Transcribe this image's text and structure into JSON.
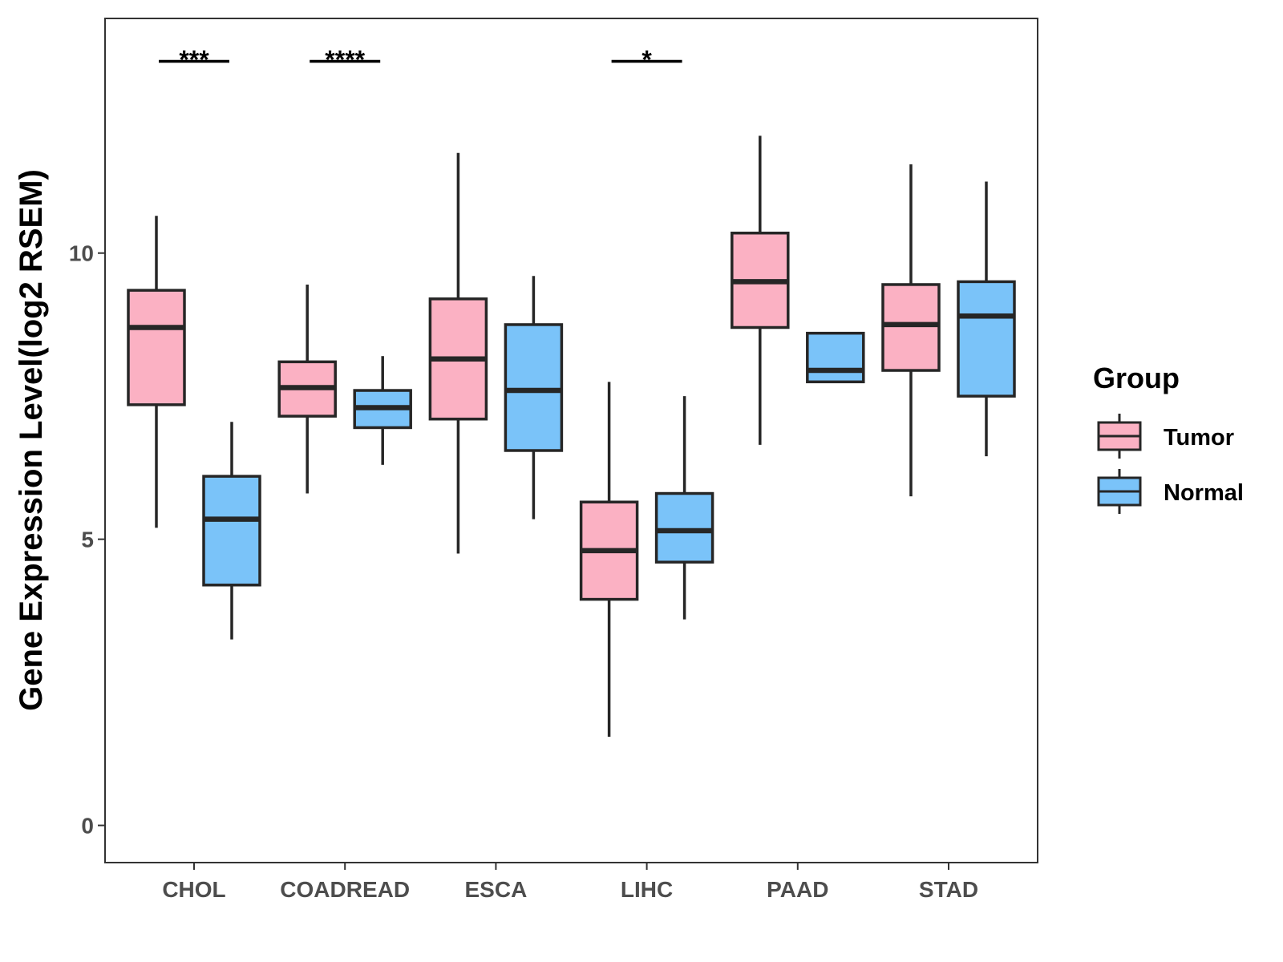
{
  "chart_data": {
    "type": "boxplot",
    "title": "",
    "xlabel": "",
    "ylabel": "Gene Expression Level(log2 RSEM)",
    "ylim": [
      -0.65,
      14.1
    ],
    "yticks": [
      0,
      5,
      10
    ],
    "categories": [
      "CHOL",
      "COADREAD",
      "ESCA",
      "LIHC",
      "PAAD",
      "STAD"
    ],
    "legend": {
      "title": "Group",
      "position": "right",
      "entries": [
        {
          "name": "Tumor",
          "color": "#fbb1c3"
        },
        {
          "name": "Normal",
          "color": "#7ac3f9"
        }
      ]
    },
    "series": [
      {
        "name": "Tumor",
        "color": "#fbb1c3",
        "boxes": [
          {
            "category": "CHOL",
            "min": 5.2,
            "q1": 7.35,
            "median": 8.7,
            "q3": 9.35,
            "max": 10.65
          },
          {
            "category": "COADREAD",
            "min": 5.8,
            "q1": 7.15,
            "median": 7.65,
            "q3": 8.1,
            "max": 9.45
          },
          {
            "category": "ESCA",
            "min": 4.75,
            "q1": 7.1,
            "median": 8.15,
            "q3": 9.2,
            "max": 11.75
          },
          {
            "category": "LIHC",
            "min": 1.55,
            "q1": 3.95,
            "median": 4.8,
            "q3": 5.65,
            "max": 7.75
          },
          {
            "category": "PAAD",
            "min": 6.65,
            "q1": 8.7,
            "median": 9.5,
            "q3": 10.35,
            "max": 12.05
          },
          {
            "category": "STAD",
            "min": 5.75,
            "q1": 7.95,
            "median": 8.75,
            "q3": 9.45,
            "max": 11.55
          }
        ]
      },
      {
        "name": "Normal",
        "color": "#7ac3f9",
        "boxes": [
          {
            "category": "CHOL",
            "min": 3.25,
            "q1": 4.2,
            "median": 5.35,
            "q3": 6.1,
            "max": 7.05
          },
          {
            "category": "COADREAD",
            "min": 6.3,
            "q1": 6.95,
            "median": 7.3,
            "q3": 7.6,
            "max": 8.2
          },
          {
            "category": "ESCA",
            "min": 5.35,
            "q1": 6.55,
            "median": 7.6,
            "q3": 8.75,
            "max": 9.6
          },
          {
            "category": "LIHC",
            "min": 3.6,
            "q1": 4.6,
            "median": 5.15,
            "q3": 5.8,
            "max": 7.5
          },
          {
            "category": "PAAD",
            "min": 7.75,
            "q1": 7.75,
            "median": 7.95,
            "q3": 8.6,
            "max": 8.6
          },
          {
            "category": "STAD",
            "min": 6.45,
            "q1": 7.5,
            "median": 8.9,
            "q3": 9.5,
            "max": 11.25
          }
        ]
      }
    ],
    "annotations": [
      {
        "category": "CHOL",
        "label": "***",
        "y": 13.35
      },
      {
        "category": "COADREAD",
        "label": "****",
        "y": 13.35
      },
      {
        "category": "LIHC",
        "label": "*",
        "y": 13.35
      }
    ]
  }
}
